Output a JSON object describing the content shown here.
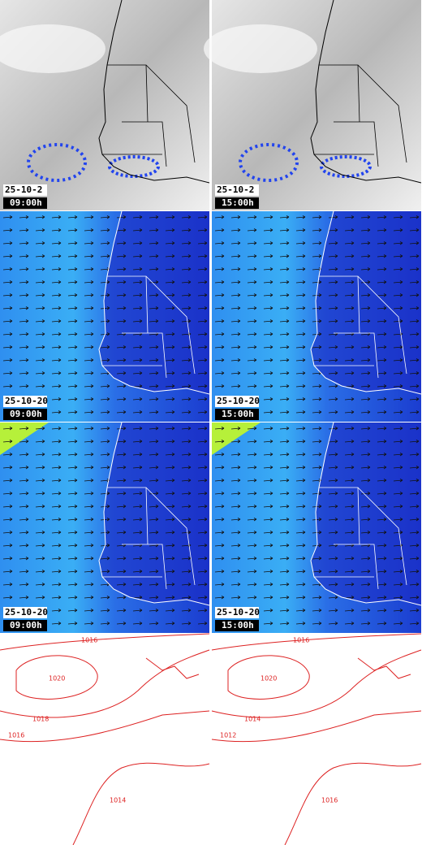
{
  "panels": [
    {
      "date": "25-10-2",
      "time": "09:00h"
    },
    {
      "date": "25-10-2",
      "time": "15:00h"
    },
    {
      "date": "25-10-20",
      "time": "09:00h"
    },
    {
      "date": "25-10-20",
      "time": "15:00h"
    },
    {
      "date": "25-10-20",
      "time": "09:00h"
    },
    {
      "date": "25-10-20",
      "time": "15:00h"
    }
  ],
  "contours": [
    {
      "labels": [
        "1016",
        "1020",
        "1018",
        "1016",
        "1014"
      ]
    },
    {
      "labels": [
        "1016",
        "1020",
        "1014",
        "1012",
        "1016"
      ]
    }
  ]
}
